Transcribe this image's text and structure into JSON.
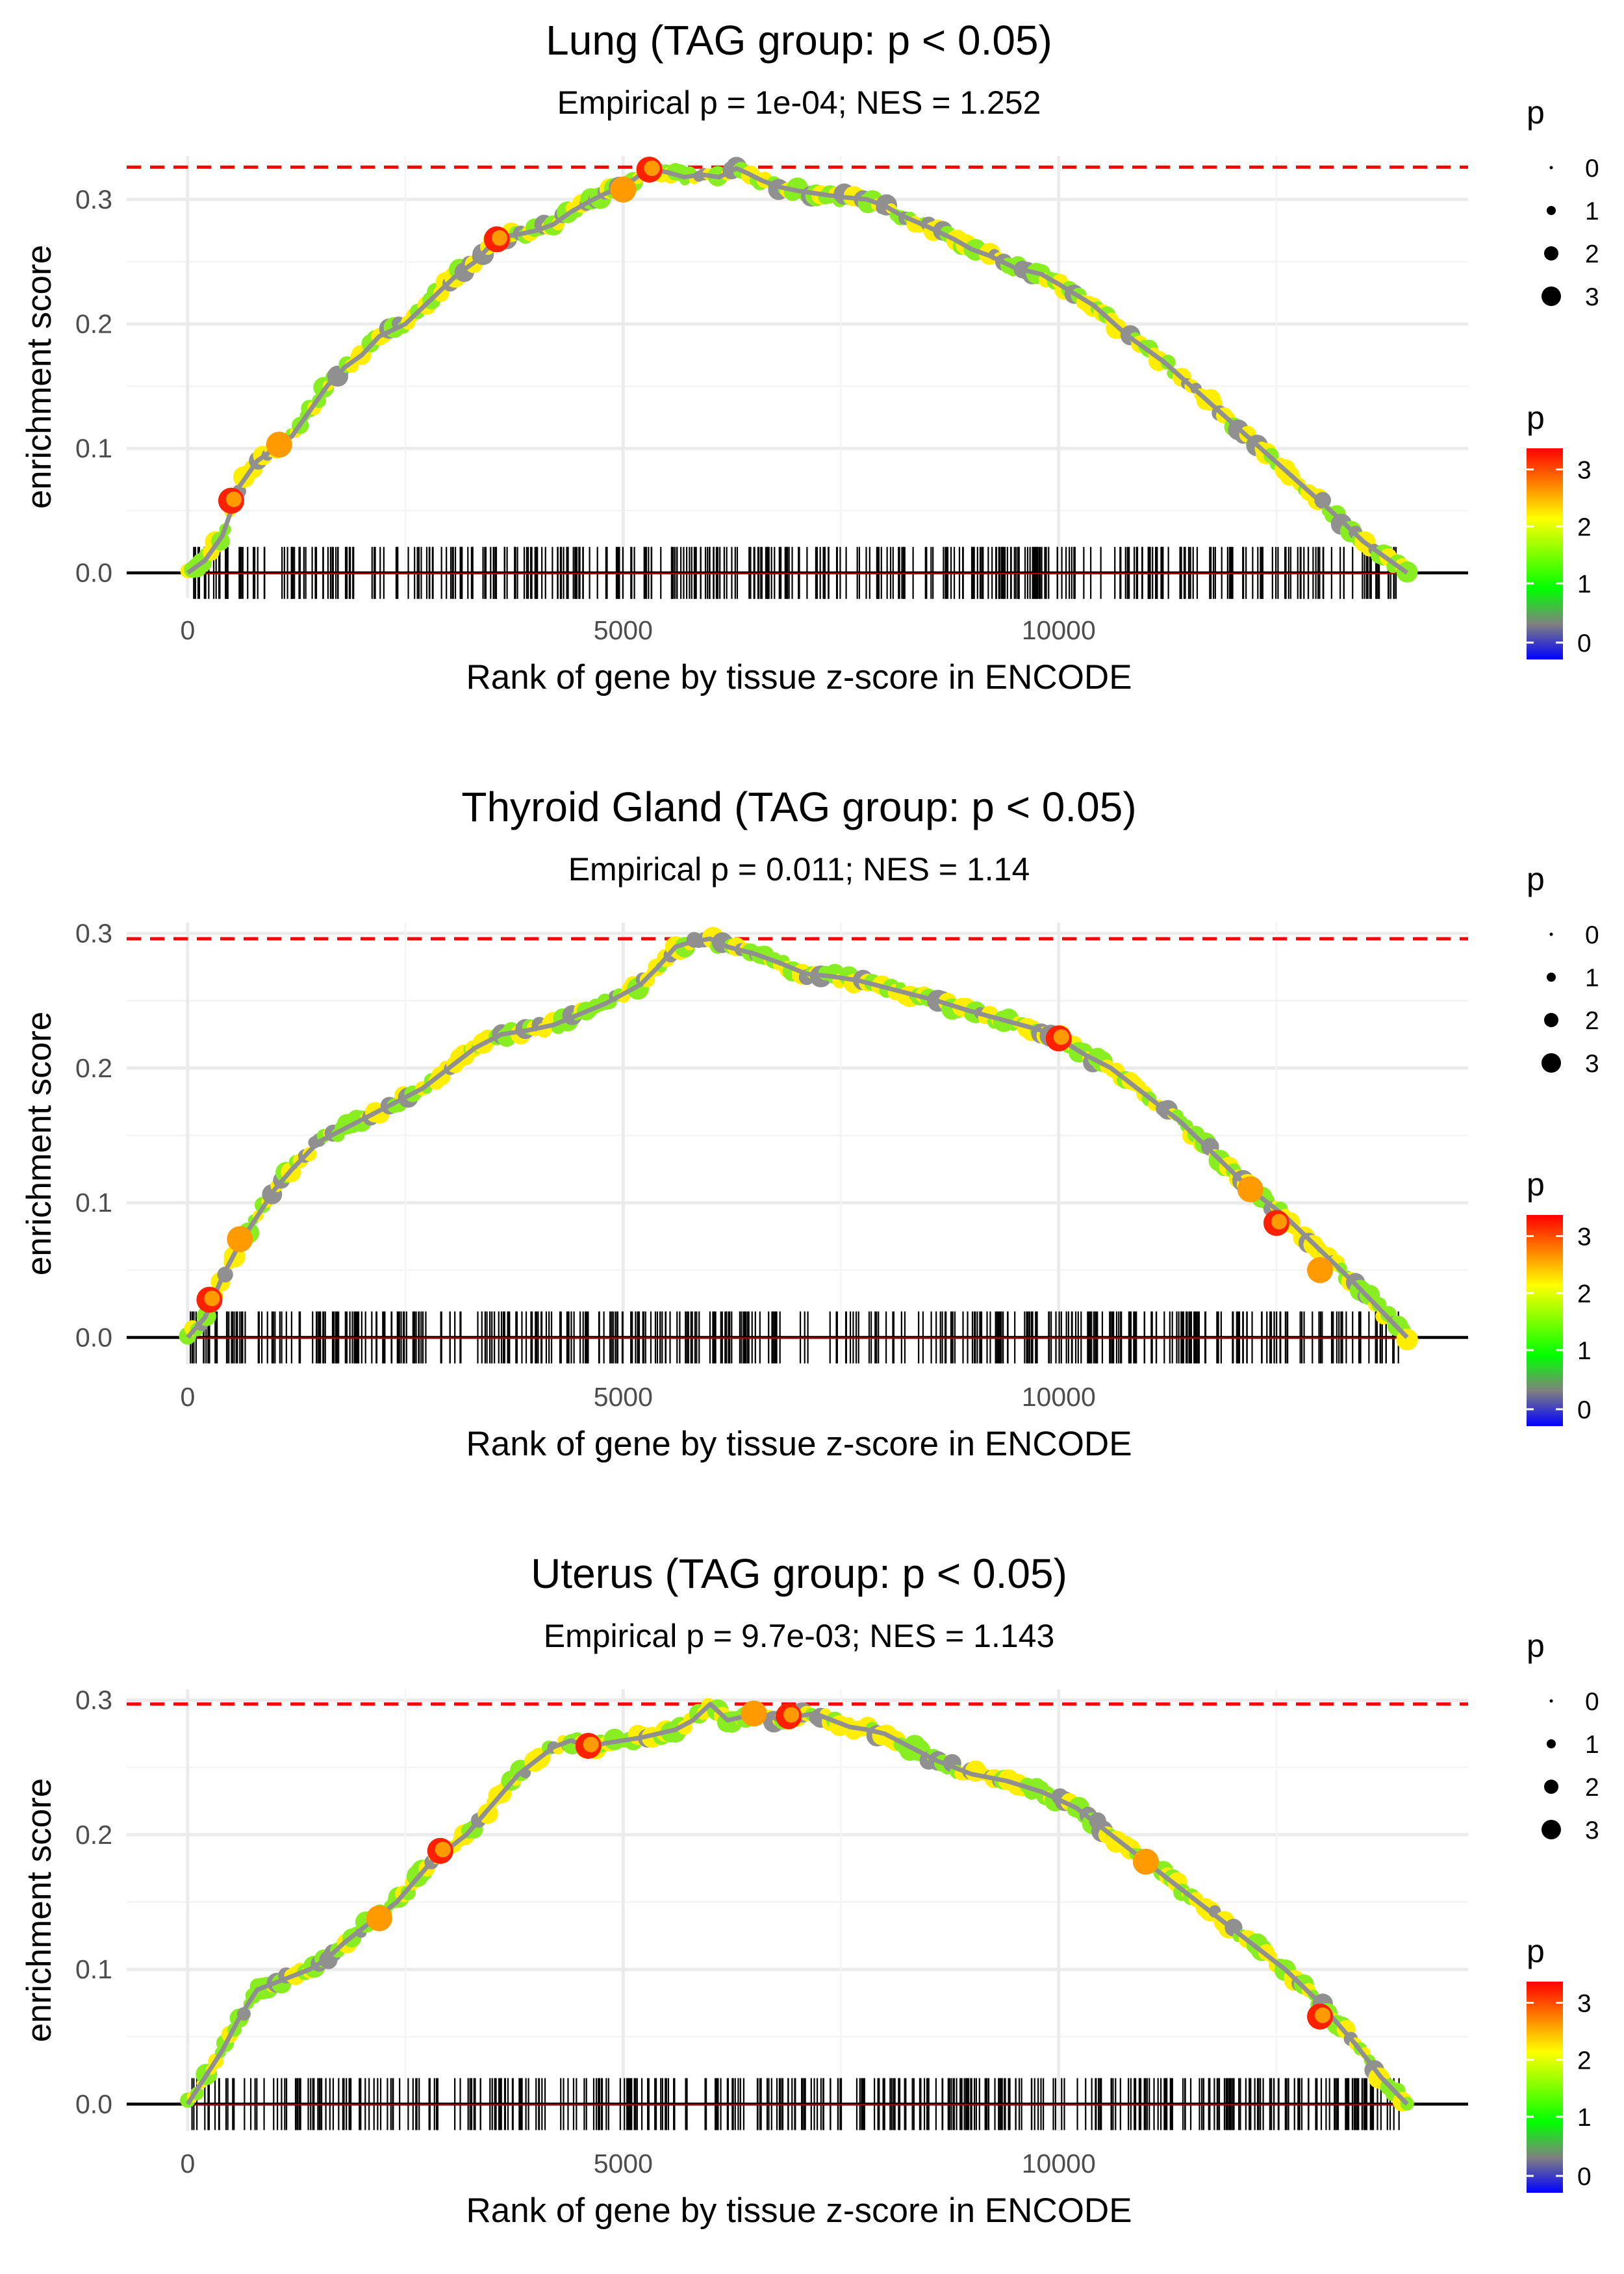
{
  "chart_data": [
    {
      "type": "line",
      "title": "Lung (TAG group: p < 0.05)",
      "subtitle": "Empirical p = 1e-04; NES = 1.252",
      "xlabel": "Rank of gene by tissue z-score in ENCODE",
      "ylabel": "enrichment score",
      "xlim": [
        -700,
        14700
      ],
      "ylim": [
        -0.02,
        0.335
      ],
      "x_ticks": [
        0,
        5000,
        10000
      ],
      "x_tick_labels": [
        "0",
        "5000",
        "10000"
      ],
      "y_ticks": [
        0.0,
        0.1,
        0.2,
        0.3
      ],
      "y_tick_labels": [
        "0.0",
        "0.1",
        "0.2",
        "0.3"
      ],
      "max_es": 0.326,
      "series": [
        {
          "name": "running enrichment score",
          "x": [
            0,
            200,
            400,
            500,
            600,
            800,
            1000,
            1100,
            1200,
            1400,
            1600,
            1800,
            2000,
            2200,
            2500,
            2800,
            3100,
            3300,
            3500,
            3600,
            3800,
            4000,
            4200,
            4400,
            4600,
            4800,
            5000,
            5200,
            5300,
            5500,
            5700,
            5900,
            6100,
            6300,
            6400,
            6600,
            6800,
            7000,
            7200,
            7500,
            7800,
            8000,
            8200,
            8500,
            8800,
            9000,
            9200,
            9500,
            9800,
            10000,
            10400,
            10800,
            11200,
            11600,
            12000,
            12400,
            12800,
            13200,
            13500,
            13800,
            14000
          ],
          "y": [
            0.0,
            0.01,
            0.03,
            0.05,
            0.07,
            0.09,
            0.1,
            0.105,
            0.11,
            0.13,
            0.15,
            0.165,
            0.175,
            0.19,
            0.2,
            0.22,
            0.24,
            0.25,
            0.265,
            0.27,
            0.272,
            0.275,
            0.28,
            0.29,
            0.298,
            0.305,
            0.31,
            0.32,
            0.324,
            0.322,
            0.318,
            0.32,
            0.318,
            0.325,
            0.322,
            0.315,
            0.31,
            0.307,
            0.305,
            0.302,
            0.3,
            0.295,
            0.287,
            0.278,
            0.268,
            0.26,
            0.255,
            0.245,
            0.24,
            0.232,
            0.215,
            0.19,
            0.17,
            0.145,
            0.12,
            0.095,
            0.07,
            0.045,
            0.025,
            0.01,
            0.0
          ]
        },
        {
          "name": "highlighted genes (high p)",
          "x": [
            500,
            1050,
            3550,
            5000,
            5300
          ],
          "y": [
            0.058,
            0.103,
            0.268,
            0.308,
            0.324
          ]
        }
      ]
    },
    {
      "type": "line",
      "title": "Thyroid Gland (TAG group: p < 0.05)",
      "subtitle": "Empirical p = 0.011; NES = 1.14",
      "xlabel": "Rank of gene by tissue z-score in ENCODE",
      "ylabel": "enrichment score",
      "xlim": [
        -700,
        14700
      ],
      "ylim": [
        -0.02,
        0.308
      ],
      "x_ticks": [
        0,
        5000,
        10000
      ],
      "x_tick_labels": [
        "0",
        "5000",
        "10000"
      ],
      "y_ticks": [
        0.0,
        0.1,
        0.2,
        0.3
      ],
      "y_tick_labels": [
        "0.0",
        "0.1",
        "0.2",
        "0.3"
      ],
      "max_es": 0.296,
      "series": [
        {
          "name": "running enrichment score",
          "x": [
            0,
            200,
            300,
            400,
            600,
            800,
            1000,
            1200,
            1500,
            1800,
            2100,
            2400,
            2700,
            3000,
            3300,
            3600,
            3900,
            4200,
            4500,
            4800,
            5000,
            5200,
            5400,
            5600,
            5800,
            6000,
            6200,
            6500,
            6800,
            7100,
            7400,
            7700,
            8000,
            8300,
            8600,
            9000,
            9400,
            9800,
            10000,
            10300,
            10600,
            11000,
            11400,
            11800,
            12200,
            12600,
            13000,
            13400,
            13700,
            14000
          ],
          "y": [
            0.0,
            0.015,
            0.03,
            0.045,
            0.07,
            0.09,
            0.11,
            0.125,
            0.145,
            0.155,
            0.165,
            0.175,
            0.185,
            0.2,
            0.215,
            0.225,
            0.228,
            0.232,
            0.24,
            0.248,
            0.255,
            0.262,
            0.275,
            0.29,
            0.294,
            0.296,
            0.29,
            0.285,
            0.278,
            0.27,
            0.268,
            0.265,
            0.26,
            0.255,
            0.25,
            0.242,
            0.235,
            0.228,
            0.222,
            0.21,
            0.2,
            0.18,
            0.16,
            0.135,
            0.11,
            0.09,
            0.065,
            0.04,
            0.02,
            0.0
          ]
        },
        {
          "name": "highlighted genes (high p)",
          "x": [
            250,
            600,
            10000,
            12200,
            12500,
            13000
          ],
          "y": [
            0.028,
            0.073,
            0.222,
            0.11,
            0.085,
            0.05
          ]
        }
      ]
    },
    {
      "type": "line",
      "title": "Uterus (TAG group: p < 0.05)",
      "subtitle": "Empirical p = 9.7e-03; NES = 1.143",
      "xlabel": "Rank of gene by tissue z-score in ENCODE",
      "ylabel": "enrichment score",
      "xlim": [
        -700,
        14700
      ],
      "ylim": [
        -0.02,
        0.308
      ],
      "x_ticks": [
        0,
        5000,
        10000
      ],
      "x_tick_labels": [
        "0",
        "5000",
        "10000"
      ],
      "y_ticks": [
        0.0,
        0.1,
        0.2,
        0.3
      ],
      "y_tick_labels": [
        "0.0",
        "0.1",
        "0.2",
        "0.3"
      ],
      "max_es": 0.297,
      "series": [
        {
          "name": "running enrichment score",
          "x": [
            0,
            200,
            400,
            600,
            800,
            1000,
            1200,
            1400,
            1600,
            1800,
            2000,
            2200,
            2400,
            2600,
            2800,
            3000,
            3200,
            3400,
            3600,
            3800,
            4000,
            4200,
            4400,
            4600,
            4800,
            5000,
            5200,
            5400,
            5600,
            5800,
            6000,
            6200,
            6400,
            6600,
            6800,
            7000,
            7200,
            7400,
            7600,
            7800,
            8000,
            8300,
            8600,
            9000,
            9400,
            9800,
            10200,
            10600,
            11000,
            11400,
            11800,
            12200,
            12600,
            13000,
            13400,
            13700,
            14000
          ],
          "y": [
            0.0,
            0.02,
            0.04,
            0.065,
            0.085,
            0.09,
            0.095,
            0.1,
            0.108,
            0.12,
            0.13,
            0.14,
            0.15,
            0.165,
            0.18,
            0.19,
            0.2,
            0.215,
            0.23,
            0.245,
            0.255,
            0.265,
            0.27,
            0.265,
            0.268,
            0.27,
            0.272,
            0.275,
            0.278,
            0.285,
            0.297,
            0.285,
            0.288,
            0.29,
            0.285,
            0.288,
            0.29,
            0.285,
            0.28,
            0.278,
            0.275,
            0.265,
            0.255,
            0.245,
            0.24,
            0.232,
            0.22,
            0.2,
            0.18,
            0.16,
            0.14,
            0.12,
            0.1,
            0.075,
            0.045,
            0.02,
            0.0
          ]
        },
        {
          "name": "highlighted genes (high p)",
          "x": [
            2900,
            2200,
            4600,
            6500,
            6900,
            11000,
            13000
          ],
          "y": [
            0.188,
            0.138,
            0.266,
            0.29,
            0.288,
            0.18,
            0.065
          ]
        }
      ]
    }
  ],
  "legend": {
    "size_title": "p",
    "size_labels": [
      "0",
      "1",
      "2",
      "3"
    ],
    "color_title": "p",
    "color_labels": [
      "3",
      "2",
      "1",
      "0"
    ],
    "colors": [
      "#ff0000",
      "#ff8000",
      "#ffff00",
      "#80ff00",
      "#00ff00",
      "#808080",
      "#0000ff"
    ]
  },
  "style": {
    "line_color": "#909090",
    "dot_color_mid": "#88ee22",
    "dot_color_alt": "#ffee00",
    "dot_color_hi": "#ff9a00",
    "dot_color_top": "#ff2000",
    "max_line_color": "#ff0000",
    "rug_color": "#000000"
  }
}
